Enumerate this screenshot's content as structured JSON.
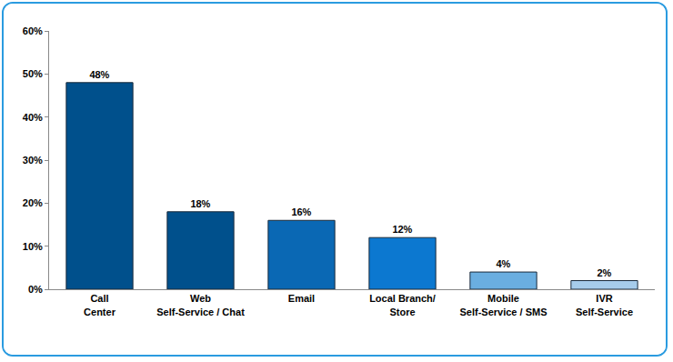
{
  "chart_data": {
    "type": "bar",
    "categories": [
      "Call\nCenter",
      "Web\nSelf-Service / Chat",
      "Email",
      "Local Branch/\nStore",
      "Mobile\nSelf-Service / SMS",
      "IVR\nSelf-Service"
    ],
    "values": [
      48,
      18,
      16,
      12,
      4,
      2
    ],
    "value_labels": [
      "48%",
      "18%",
      "16%",
      "12%",
      "4%",
      "2%"
    ],
    "colors": [
      "#00508c",
      "#00508c",
      "#0a68b4",
      "#0c78d0",
      "#6aaee0",
      "#a6cceb"
    ],
    "ylim": [
      0,
      60
    ],
    "yticks": [
      {
        "value": 0,
        "label": "0%"
      },
      {
        "value": 10,
        "label": "10%"
      },
      {
        "value": 20,
        "label": "20%"
      },
      {
        "value": 30,
        "label": "30%"
      },
      {
        "value": 40,
        "label": "40%"
      },
      {
        "value": 50,
        "label": "50%"
      },
      {
        "value": 60,
        "label": "60%"
      }
    ],
    "grid": false,
    "data_labels": true
  }
}
